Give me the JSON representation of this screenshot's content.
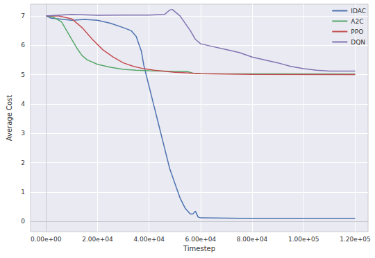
{
  "chart_data": {
    "type": "line",
    "x_label": "Timestep",
    "y_label": "Average Cost",
    "xlim": [
      -6000,
      125000
    ],
    "ylim": [
      -0.35,
      7.4
    ],
    "xticks": [
      {
        "value": 0,
        "label": "0.00e+00"
      },
      {
        "value": 20000,
        "label": "2.00e+04"
      },
      {
        "value": 40000,
        "label": "4.00e+04"
      },
      {
        "value": 60000,
        "label": "6.00e+04"
      },
      {
        "value": 80000,
        "label": "8.00e+04"
      },
      {
        "value": 100000,
        "label": "1.00e+05"
      },
      {
        "value": 120000,
        "label": "1.20e+05"
      }
    ],
    "yticks": [
      0,
      1,
      2,
      3,
      4,
      5,
      6,
      7
    ],
    "grid": true,
    "legend": "top-right",
    "series": [
      {
        "name": "IDAC",
        "color": "#4C72B0",
        "x": [
          0,
          2000,
          5000,
          10000,
          15000,
          20000,
          25000,
          30000,
          33000,
          35000,
          37000,
          38000,
          40000,
          42000,
          44000,
          46000,
          48000,
          50000,
          52000,
          54000,
          56000,
          57000,
          58000,
          59000,
          60000,
          70000,
          80000,
          120000
        ],
        "values": [
          7.0,
          6.92,
          6.9,
          6.85,
          6.88,
          6.85,
          6.75,
          6.6,
          6.5,
          6.3,
          5.8,
          5.3,
          4.6,
          3.9,
          3.2,
          2.5,
          1.8,
          1.3,
          0.8,
          0.45,
          0.25,
          0.25,
          0.35,
          0.15,
          0.12,
          0.11,
          0.1,
          0.1
        ]
      },
      {
        "name": "A2C",
        "color": "#55A868",
        "x": [
          0,
          3000,
          6000,
          8000,
          10000,
          12000,
          14000,
          16000,
          20000,
          25000,
          30000,
          35000,
          40000,
          45000,
          50000,
          55000,
          57000,
          60000,
          120000
        ],
        "values": [
          7.0,
          6.95,
          6.8,
          6.5,
          6.2,
          5.9,
          5.65,
          5.5,
          5.35,
          5.25,
          5.18,
          5.15,
          5.13,
          5.12,
          5.11,
          5.1,
          5.05,
          5.03,
          5.02
        ]
      },
      {
        "name": "PPO",
        "color": "#C44E52",
        "x": [
          0,
          5000,
          10000,
          14000,
          18000,
          22000,
          26000,
          30000,
          34000,
          38000,
          42000,
          50000,
          60000,
          80000,
          120000
        ],
        "values": [
          7.0,
          7.0,
          6.9,
          6.6,
          6.2,
          5.85,
          5.6,
          5.4,
          5.28,
          5.2,
          5.15,
          5.08,
          5.03,
          5.01,
          5.0
        ]
      },
      {
        "name": "DQN",
        "color": "#8172B2",
        "x": [
          0,
          10000,
          20000,
          30000,
          40000,
          46000,
          48000,
          49000,
          52000,
          56000,
          58000,
          60000,
          65000,
          70000,
          75000,
          80000,
          85000,
          90000,
          95000,
          100000,
          105000,
          110000,
          120000
        ],
        "values": [
          7.0,
          7.05,
          7.02,
          7.03,
          7.03,
          7.05,
          7.2,
          7.22,
          7.0,
          6.5,
          6.2,
          6.05,
          5.95,
          5.85,
          5.75,
          5.6,
          5.5,
          5.4,
          5.28,
          5.2,
          5.15,
          5.12,
          5.12
        ]
      }
    ]
  }
}
